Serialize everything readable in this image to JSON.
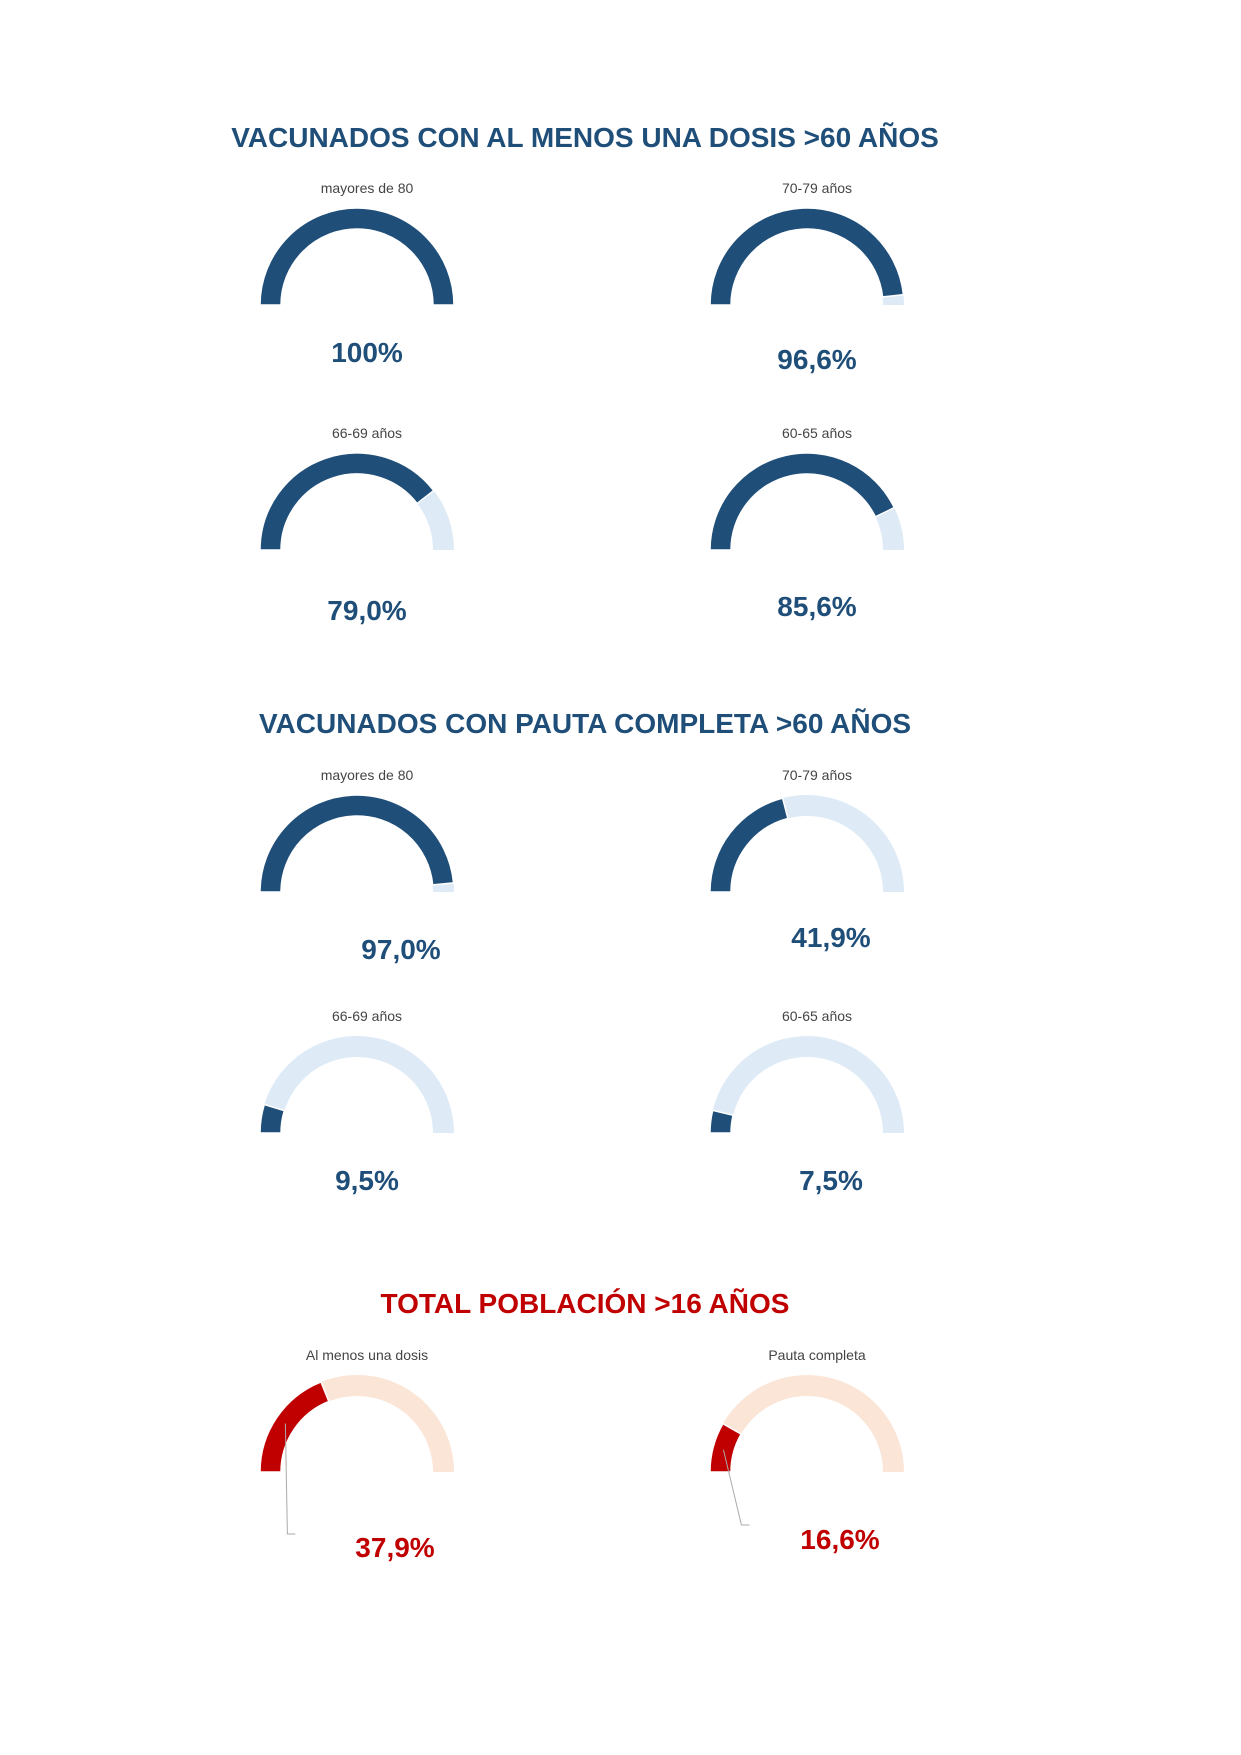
{
  "sections": [
    {
      "title": "VACUNADOS CON AL MENOS UNA DOSIS >60 AÑOS",
      "color": "#1f4e79",
      "gauges": [
        {
          "label": "mayores de 80",
          "value_text": "100%"
        },
        {
          "label": "70-79 años",
          "value_text": "96,6%"
        },
        {
          "label": "66-69 años",
          "value_text": "79,0%"
        },
        {
          "label": "60-65 años",
          "value_text": "85,6%"
        }
      ]
    },
    {
      "title": "VACUNADOS CON PAUTA COMPLETA >60 AÑOS",
      "color": "#1f4e79",
      "gauges": [
        {
          "label": "mayores de 80",
          "value_text": "97,0%"
        },
        {
          "label": "70-79 años",
          "value_text": "41,9%"
        },
        {
          "label": "66-69 años",
          "value_text": "9,5%"
        },
        {
          "label": "60-65 años",
          "value_text": "7,5%"
        }
      ]
    },
    {
      "title": "TOTAL POBLACIÓN >16 AÑOS",
      "color": "#c00000",
      "gauges": [
        {
          "label": "Al menos una dosis",
          "value_text": "37,9%"
        },
        {
          "label": "Pauta completa",
          "value_text": "16,6%"
        }
      ]
    }
  ],
  "chart_data": [
    {
      "type": "pie",
      "title": "mayores de 80",
      "values": [
        100.0
      ],
      "range": [
        0,
        100
      ],
      "color": "#1f4e79",
      "track_color": "#deebf7"
    },
    {
      "type": "pie",
      "title": "70-79 años",
      "values": [
        96.6
      ],
      "range": [
        0,
        100
      ],
      "color": "#1f4e79",
      "track_color": "#deebf7"
    },
    {
      "type": "pie",
      "title": "66-69 años",
      "values": [
        79.0
      ],
      "range": [
        0,
        100
      ],
      "color": "#1f4e79",
      "track_color": "#deebf7"
    },
    {
      "type": "pie",
      "title": "60-65 años",
      "values": [
        85.6
      ],
      "range": [
        0,
        100
      ],
      "color": "#1f4e79",
      "track_color": "#deebf7"
    },
    {
      "type": "pie",
      "title": "mayores de 80",
      "values": [
        97.0
      ],
      "range": [
        0,
        100
      ],
      "color": "#1f4e79",
      "track_color": "#deebf7"
    },
    {
      "type": "pie",
      "title": "70-79 años",
      "values": [
        41.9
      ],
      "range": [
        0,
        100
      ],
      "color": "#1f4e79",
      "track_color": "#deebf7"
    },
    {
      "type": "pie",
      "title": "66-69 años",
      "values": [
        9.5
      ],
      "range": [
        0,
        100
      ],
      "color": "#1f4e79",
      "track_color": "#deebf7"
    },
    {
      "type": "pie",
      "title": "60-65 años",
      "values": [
        7.5
      ],
      "range": [
        0,
        100
      ],
      "color": "#1f4e79",
      "track_color": "#deebf7"
    },
    {
      "type": "pie",
      "title": "Al menos una dosis",
      "values": [
        37.9
      ],
      "range": [
        0,
        100
      ],
      "color": "#c00000",
      "track_color": "#fbe5d6"
    },
    {
      "type": "pie",
      "title": "Pauta completa",
      "values": [
        16.6
      ],
      "range": [
        0,
        100
      ],
      "color": "#c00000",
      "track_color": "#fbe5d6"
    }
  ]
}
